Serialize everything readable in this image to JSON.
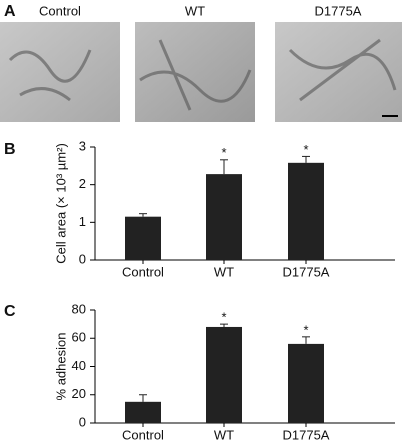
{
  "images": {
    "panel": "A",
    "labels": [
      "Control",
      "WT",
      "D1775A"
    ]
  },
  "chart_data": [
    {
      "type": "bar",
      "panel": "B",
      "ylabel": "Cell area (× 10³ µm²)",
      "categories": [
        "Control",
        "WT",
        "D1775A"
      ],
      "values": [
        1.15,
        2.28,
        2.58
      ],
      "errors": [
        0.08,
        0.38,
        0.17
      ],
      "significance": [
        null,
        "*",
        "*"
      ],
      "color": "#222222",
      "ylim": [
        0,
        3
      ],
      "yticks": [
        0,
        1,
        2,
        3
      ]
    },
    {
      "type": "bar",
      "panel": "C",
      "ylabel": "% adhesion",
      "categories": [
        "Control",
        "WT",
        "D1775A"
      ],
      "values": [
        15,
        68,
        56
      ],
      "errors": [
        5,
        2,
        5
      ],
      "significance": [
        null,
        "*",
        "*"
      ],
      "color": "#222222",
      "ylim": [
        0,
        80
      ],
      "yticks": [
        0,
        20,
        40,
        60,
        80
      ]
    }
  ]
}
